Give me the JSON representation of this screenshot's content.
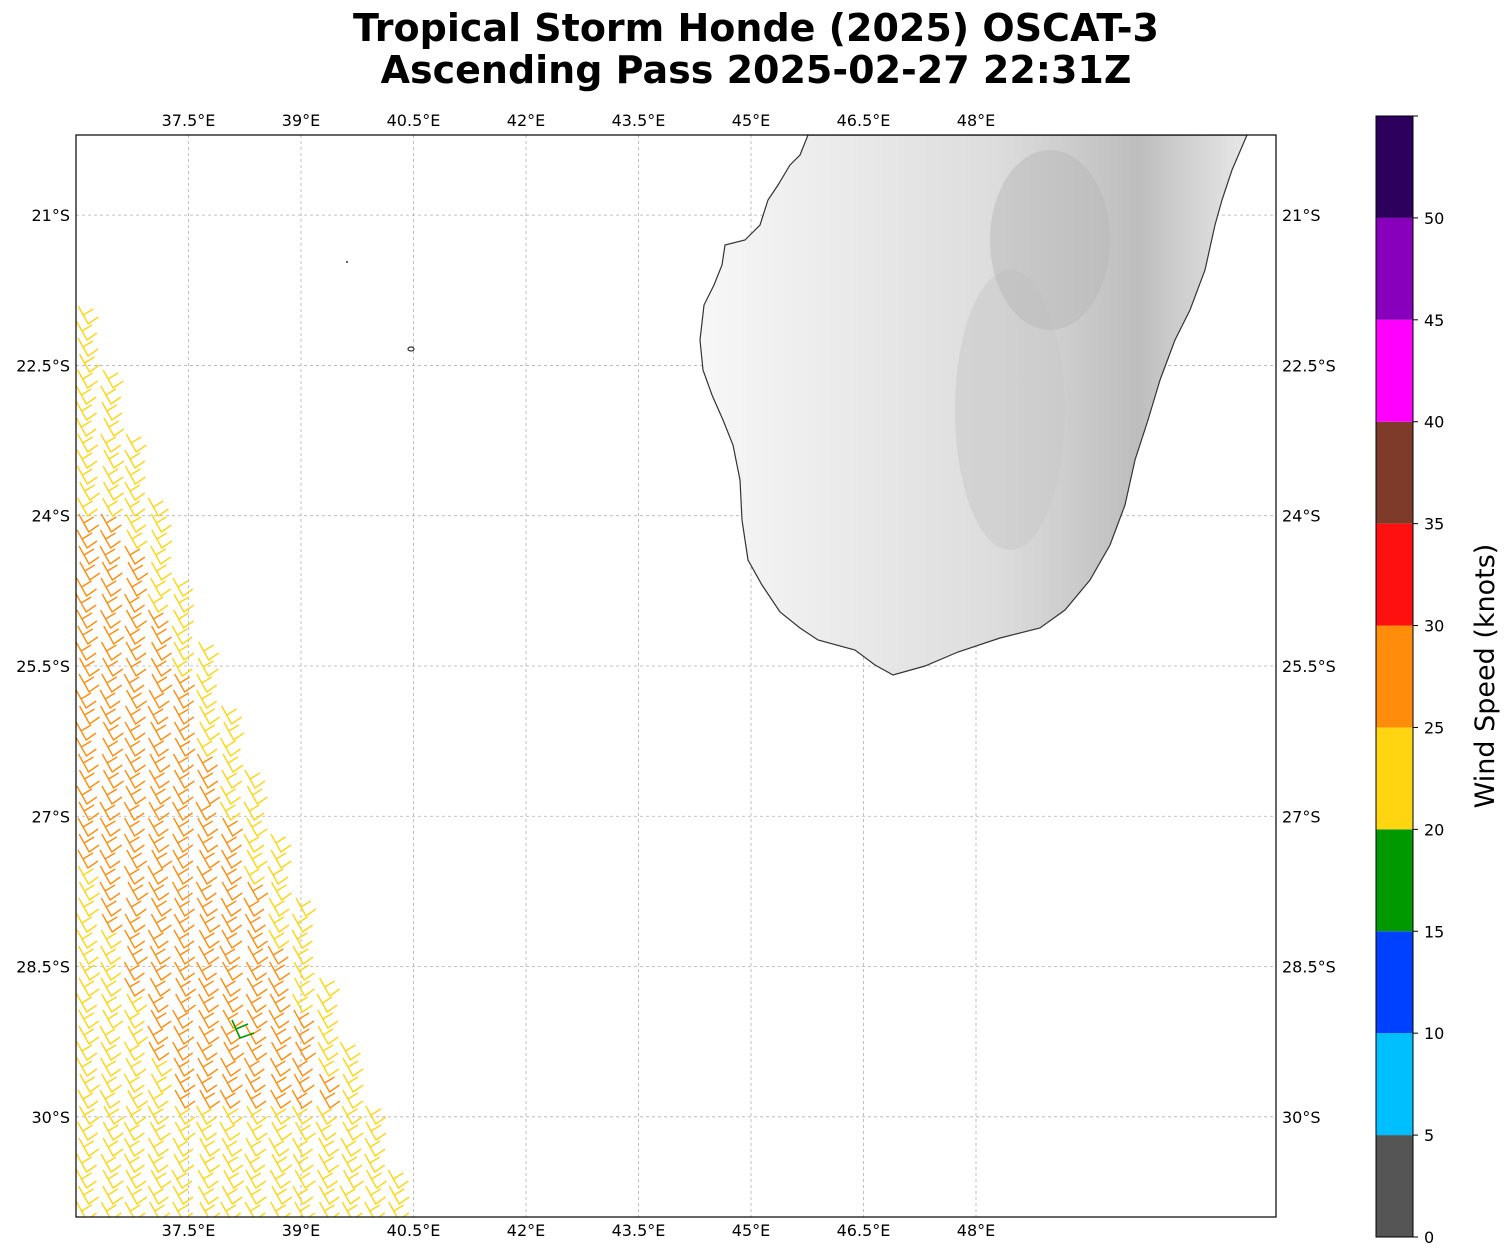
{
  "title": {
    "line1": "Tropical Storm Honde (2025) OSCAT-3",
    "line2": "Ascending Pass 2025-02-27 22:31Z"
  },
  "map": {
    "lon_range": [
      36.0,
      52.0
    ],
    "lat_range": [
      -31.0,
      -20.2
    ],
    "lon_ticks": [
      {
        "value": 37.5,
        "label": "37.5°E"
      },
      {
        "value": 39.0,
        "label": "39°E"
      },
      {
        "value": 40.5,
        "label": "40.5°E"
      },
      {
        "value": 42.0,
        "label": "42°E"
      },
      {
        "value": 43.5,
        "label": "43.5°E"
      },
      {
        "value": 45.0,
        "label": "45°E"
      },
      {
        "value": 46.5,
        "label": "46.5°E"
      },
      {
        "value": 48.0,
        "label": "48°E"
      }
    ],
    "lat_ticks": [
      {
        "value": -21.0,
        "label": "21°S"
      },
      {
        "value": -22.5,
        "label": "22.5°S"
      },
      {
        "value": -24.0,
        "label": "24°S"
      },
      {
        "value": -25.5,
        "label": "25.5°S"
      },
      {
        "value": -27.0,
        "label": "27°S"
      },
      {
        "value": -28.5,
        "label": "28.5°S"
      },
      {
        "value": -30.0,
        "label": "30°S"
      }
    ],
    "gridlines": true,
    "land_feature": "Madagascar (southern part)",
    "land_color": "#e6e6e6",
    "coast_color": "#333333"
  },
  "colorbar": {
    "label": "Wind Speed (knots)",
    "tick_labels": [
      "0",
      "5",
      "10",
      "15",
      "20",
      "25",
      "30",
      "35",
      "40",
      "45",
      "50"
    ],
    "bins": [
      {
        "min": 0,
        "max": 5,
        "color": "#555555"
      },
      {
        "min": 5,
        "max": 10,
        "color": "#00bfff"
      },
      {
        "min": 10,
        "max": 15,
        "color": "#0040ff"
      },
      {
        "min": 15,
        "max": 20,
        "color": "#009900"
      },
      {
        "min": 20,
        "max": 25,
        "color": "#ffd511"
      },
      {
        "min": 25,
        "max": 30,
        "color": "#ff8c0a"
      },
      {
        "min": 30,
        "max": 35,
        "color": "#ff1010"
      },
      {
        "min": 35,
        "max": 40,
        "color": "#7f3b2a"
      },
      {
        "min": 40,
        "max": 45,
        "color": "#ff00ff"
      },
      {
        "min": 45,
        "max": 50,
        "color": "#8800bb"
      },
      {
        "min": 50,
        "max": 55,
        "color": "#2e005e"
      }
    ]
  }
}
